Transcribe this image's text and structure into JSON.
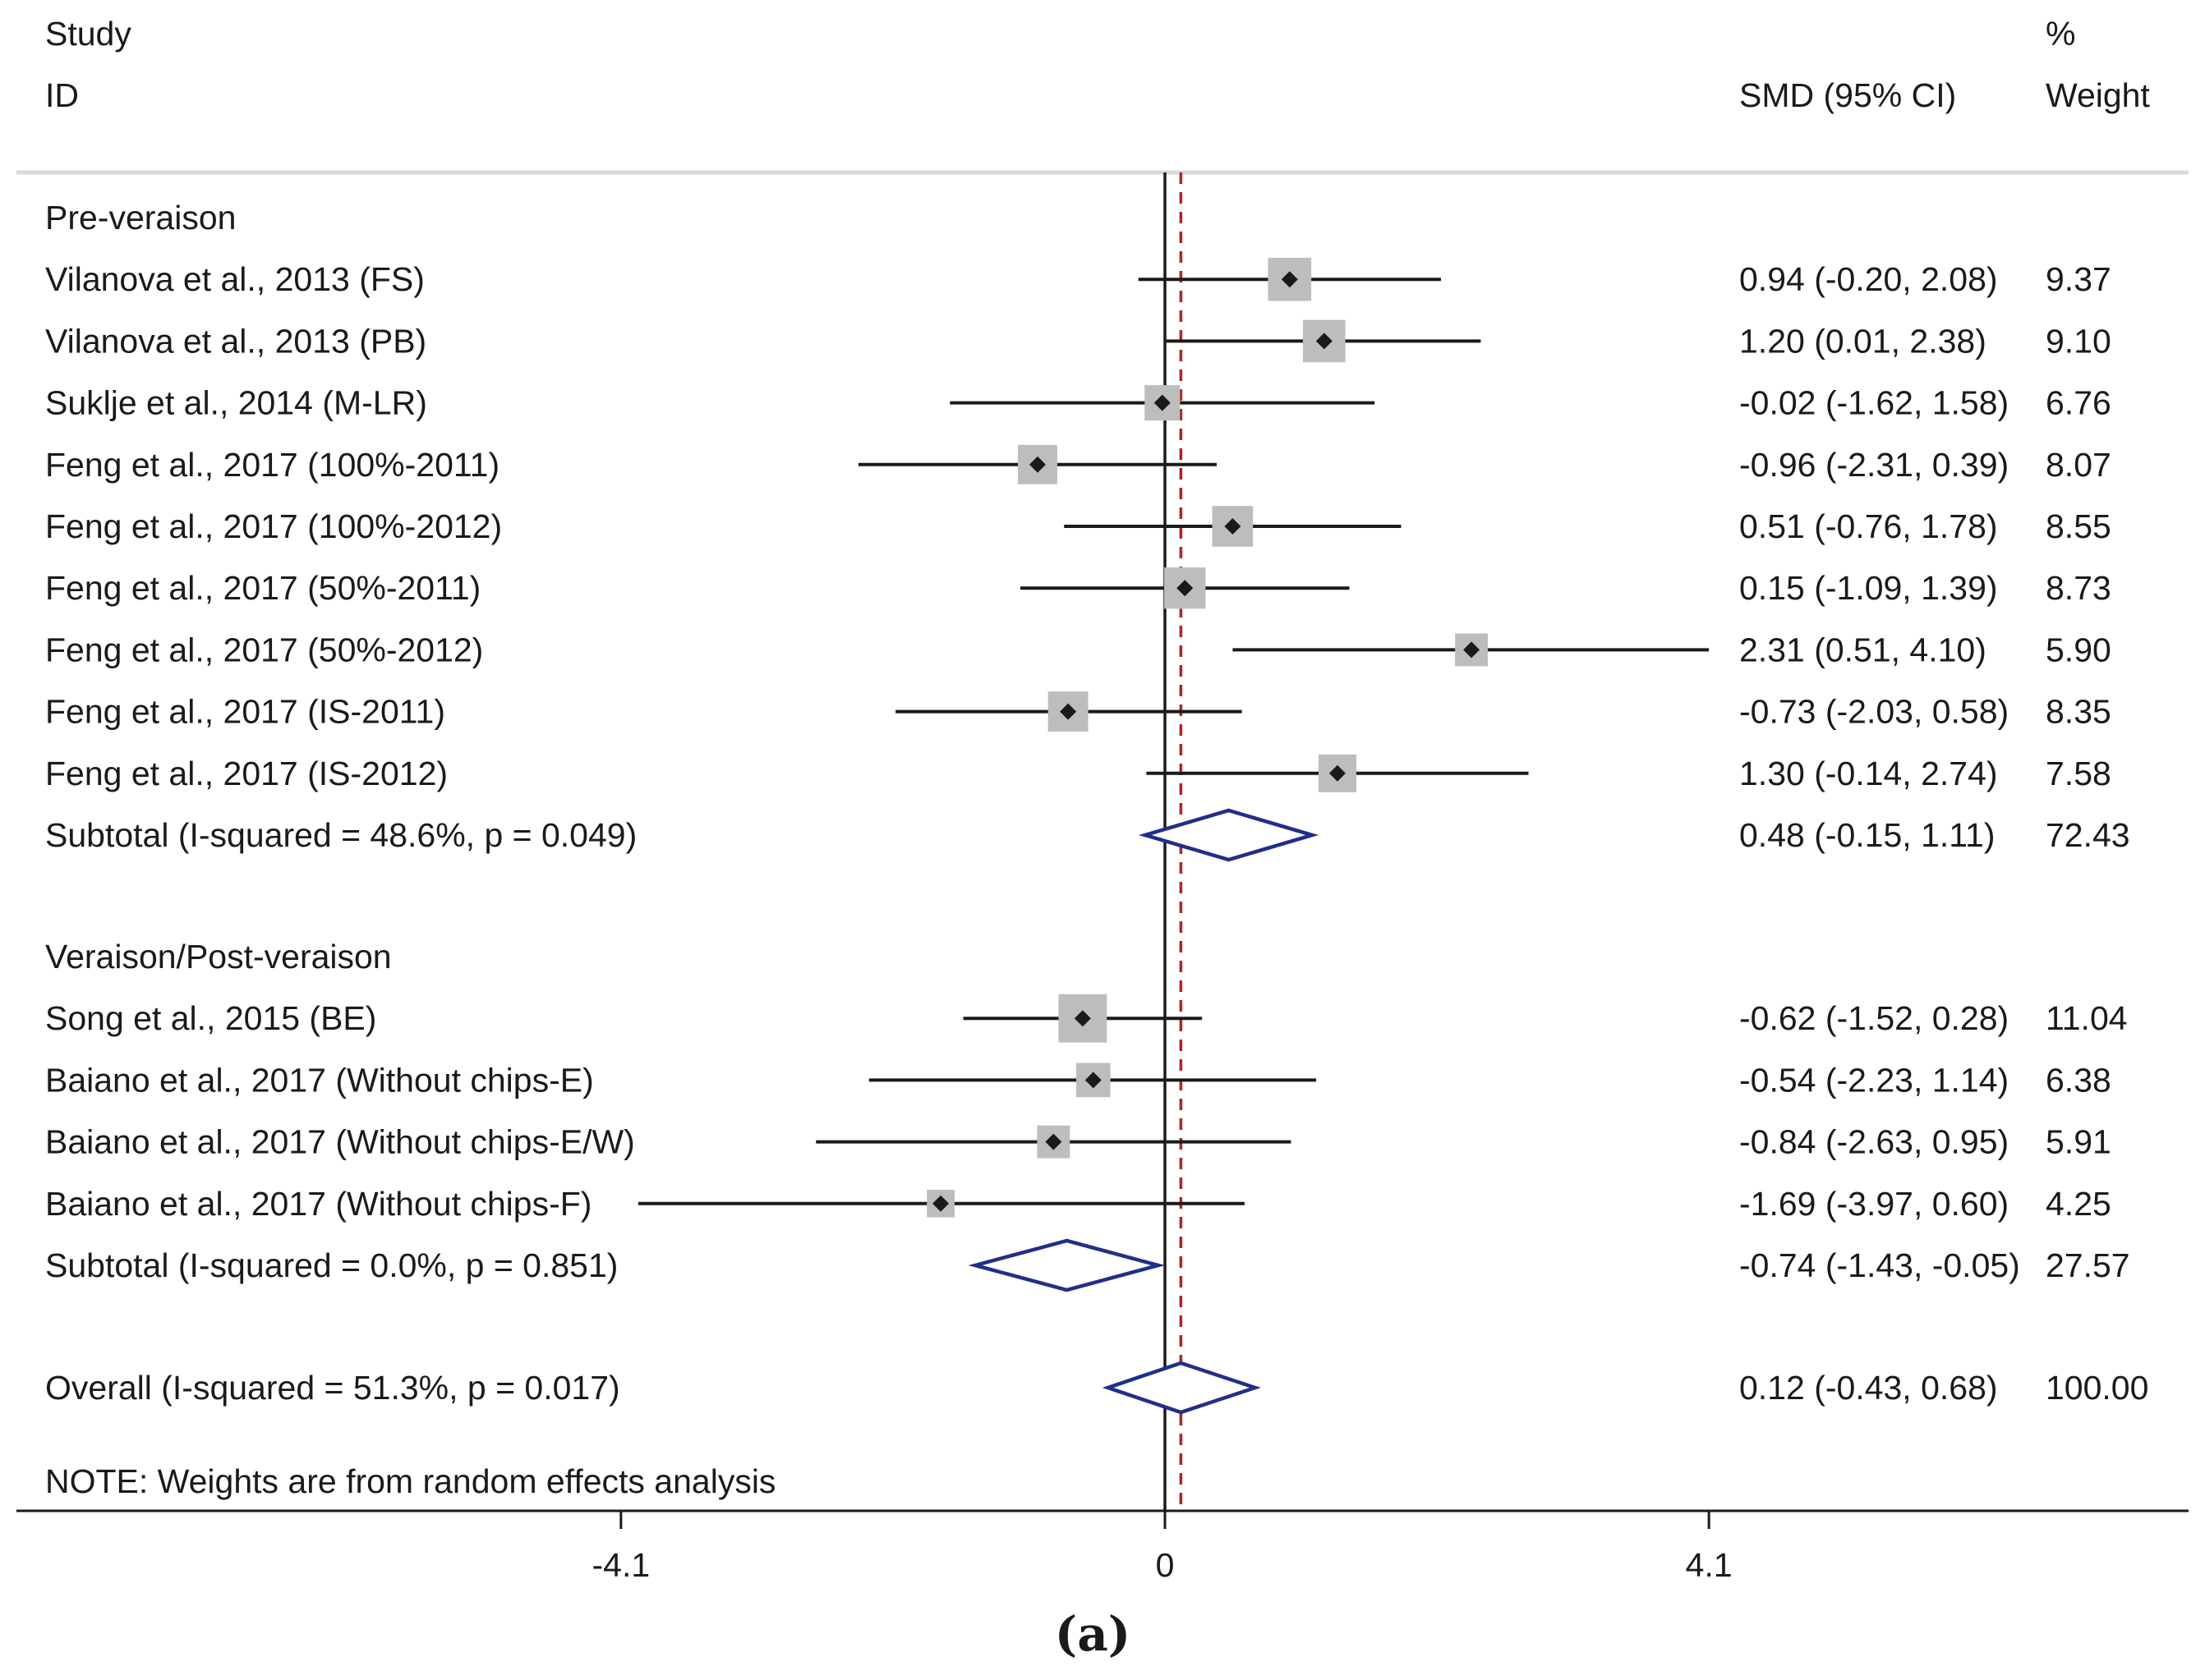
{
  "chart_data": {
    "type": "forest",
    "header": {
      "study": "Study",
      "id": "ID",
      "percent": "%",
      "smd": "SMD (95% CI)",
      "weight": "Weight"
    },
    "xlim": [
      -8.8,
      7.6
    ],
    "x_ticks": [
      {
        "value": -4.1,
        "label": "-4.1"
      },
      {
        "value": 0,
        "label": "0"
      },
      {
        "value": 4.1,
        "label": "4.1"
      }
    ],
    "null_line": 0,
    "overall_line": 0.12,
    "groups": [
      {
        "label": "Pre-veraison",
        "studies": [
          {
            "label": "Vilanova et al., 2013 (FS)",
            "smd": 0.94,
            "lo": -0.2,
            "hi": 2.08,
            "ci_text": "0.94 (-0.20, 2.08)",
            "weight": 9.37,
            "weight_text": "9.37"
          },
          {
            "label": "Vilanova et al., 2013 (PB)",
            "smd": 1.2,
            "lo": 0.01,
            "hi": 2.38,
            "ci_text": "1.20 (0.01, 2.38)",
            "weight": 9.1,
            "weight_text": "9.10"
          },
          {
            "label": "Suklje et al., 2014 (M-LR)",
            "smd": -0.02,
            "lo": -1.62,
            "hi": 1.58,
            "ci_text": "-0.02 (-1.62, 1.58)",
            "weight": 6.76,
            "weight_text": "6.76"
          },
          {
            "label": "Feng et al., 2017 (100%-2011)",
            "smd": -0.96,
            "lo": -2.31,
            "hi": 0.39,
            "ci_text": "-0.96 (-2.31, 0.39)",
            "weight": 8.07,
            "weight_text": "8.07"
          },
          {
            "label": "Feng et al., 2017 (100%-2012)",
            "smd": 0.51,
            "lo": -0.76,
            "hi": 1.78,
            "ci_text": "0.51 (-0.76, 1.78)",
            "weight": 8.55,
            "weight_text": "8.55"
          },
          {
            "label": "Feng et al., 2017 (50%-2011)",
            "smd": 0.15,
            "lo": -1.09,
            "hi": 1.39,
            "ci_text": "0.15 (-1.09, 1.39)",
            "weight": 8.73,
            "weight_text": "8.73"
          },
          {
            "label": "Feng et al., 2017 (50%-2012)",
            "smd": 2.31,
            "lo": 0.51,
            "hi": 4.1,
            "ci_text": "2.31 (0.51, 4.10)",
            "weight": 5.9,
            "weight_text": "5.90"
          },
          {
            "label": "Feng et al., 2017 (IS-2011)",
            "smd": -0.73,
            "lo": -2.03,
            "hi": 0.58,
            "ci_text": "-0.73 (-2.03, 0.58)",
            "weight": 8.35,
            "weight_text": "8.35"
          },
          {
            "label": "Feng et al., 2017 (IS-2012)",
            "smd": 1.3,
            "lo": -0.14,
            "hi": 2.74,
            "ci_text": "1.30 (-0.14, 2.74)",
            "weight": 7.58,
            "weight_text": "7.58"
          }
        ],
        "subtotal": {
          "label": "Subtotal  (I-squared = 48.6%, p = 0.049)",
          "smd": 0.48,
          "lo": -0.15,
          "hi": 1.11,
          "ci_text": "0.48 (-0.15, 1.11)",
          "weight_text": "72.43"
        }
      },
      {
        "label": "Veraison/Post-veraison",
        "studies": [
          {
            "label": "Song et al., 2015 (BE)",
            "smd": -0.62,
            "lo": -1.52,
            "hi": 0.28,
            "ci_text": "-0.62 (-1.52, 0.28)",
            "weight": 11.04,
            "weight_text": "11.04"
          },
          {
            "label": "Baiano et al., 2017 (Without chips-E)",
            "smd": -0.54,
            "lo": -2.23,
            "hi": 1.14,
            "ci_text": "-0.54 (-2.23, 1.14)",
            "weight": 6.38,
            "weight_text": "6.38"
          },
          {
            "label": "Baiano et al., 2017 (Without chips-E/W)",
            "smd": -0.84,
            "lo": -2.63,
            "hi": 0.95,
            "ci_text": "-0.84 (-2.63, 0.95)",
            "weight": 5.91,
            "weight_text": "5.91"
          },
          {
            "label": "Baiano et al., 2017 (Without chips-F)",
            "smd": -1.69,
            "lo": -3.97,
            "hi": 0.6,
            "ci_text": "-1.69 (-3.97, 0.60)",
            "weight": 4.25,
            "weight_text": "4.25"
          }
        ],
        "subtotal": {
          "label": "Subtotal  (I-squared = 0.0%, p = 0.851)",
          "smd": -0.74,
          "lo": -1.43,
          "hi": -0.05,
          "ci_text": "-0.74 (-1.43, -0.05)",
          "weight_text": "27.57"
        }
      }
    ],
    "overall": {
      "label": "Overall  (I-squared = 51.3%, p = 0.017)",
      "smd": 0.12,
      "lo": -0.43,
      "hi": 0.68,
      "ci_text": "0.12 (-0.43, 0.68)",
      "weight_text": "100.00"
    },
    "note": "NOTE: Weights are from random effects analysis",
    "caption": "(a)",
    "colors": {
      "line": "#1a1a1a",
      "diamond": "#1f2f8a",
      "overall_line": "#b22222",
      "box": "#bdbdbd",
      "rule": "#d9d9d9"
    }
  }
}
